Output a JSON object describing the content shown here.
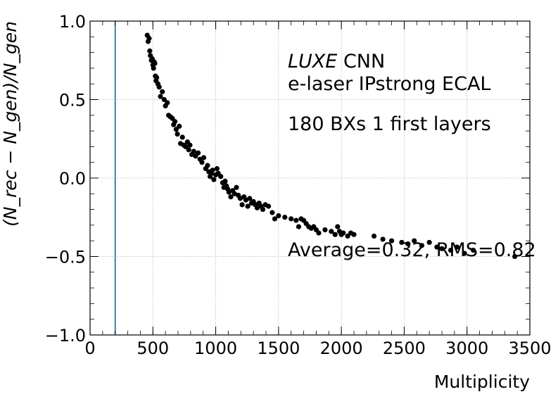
{
  "chart_data": {
    "type": "scatter",
    "xlabel": "Multiplicity",
    "ylabel": "(N_rec − N_gen)/N_gen",
    "xlim": [
      0,
      3500
    ],
    "ylim": [
      -1.0,
      1.0
    ],
    "grid": true,
    "x_ticks": [
      "0",
      "500",
      "1000",
      "1500",
      "2000",
      "2500",
      "3000",
      "3500"
    ],
    "y_ticks": [
      "−1.0",
      "−0.5",
      "0.0",
      "0.5",
      "1.0"
    ],
    "vertical_line_x": 200,
    "annotations": {
      "line1_italic": "LUXE",
      "line1_rest": " CNN",
      "line2": "e-laser IPstrong ECAL",
      "line3": "180 BXs 1 first layers",
      "stats": "Average=0.32, RMS=0.82"
    },
    "colors": {
      "points": "#000000",
      "vline": "#1f77b4",
      "grid": "#b0b0b0"
    },
    "points": [
      [
        455,
        0.91
      ],
      [
        462,
        0.87
      ],
      [
        470,
        0.89
      ],
      [
        475,
        0.81
      ],
      [
        480,
        0.78
      ],
      [
        488,
        0.75
      ],
      [
        495,
        0.76
      ],
      [
        500,
        0.72
      ],
      [
        505,
        0.7
      ],
      [
        510,
        0.74
      ],
      [
        515,
        0.73
      ],
      [
        520,
        0.65
      ],
      [
        525,
        0.62
      ],
      [
        530,
        0.64
      ],
      [
        540,
        0.6
      ],
      [
        550,
        0.58
      ],
      [
        560,
        0.52
      ],
      [
        575,
        0.55
      ],
      [
        590,
        0.5
      ],
      [
        600,
        0.46
      ],
      [
        615,
        0.48
      ],
      [
        625,
        0.4
      ],
      [
        640,
        0.39
      ],
      [
        655,
        0.38
      ],
      [
        665,
        0.34
      ],
      [
        675,
        0.36
      ],
      [
        685,
        0.31
      ],
      [
        695,
        0.28
      ],
      [
        710,
        0.33
      ],
      [
        720,
        0.22
      ],
      [
        735,
        0.26
      ],
      [
        745,
        0.21
      ],
      [
        760,
        0.2
      ],
      [
        775,
        0.23
      ],
      [
        785,
        0.18
      ],
      [
        795,
        0.21
      ],
      [
        810,
        0.15
      ],
      [
        825,
        0.17
      ],
      [
        840,
        0.14
      ],
      [
        860,
        0.16
      ],
      [
        875,
        0.12
      ],
      [
        890,
        0.1
      ],
      [
        905,
        0.13
      ],
      [
        920,
        0.06
      ],
      [
        935,
        0.08
      ],
      [
        945,
        0.04
      ],
      [
        955,
        0.01
      ],
      [
        965,
        0.03
      ],
      [
        975,
        0.05
      ],
      [
        985,
        -0.01
      ],
      [
        1000,
        0.02
      ],
      [
        1010,
        0.06
      ],
      [
        1020,
        0.03
      ],
      [
        1040,
        0.01
      ],
      [
        1055,
        -0.03
      ],
      [
        1065,
        -0.06
      ],
      [
        1075,
        -0.02
      ],
      [
        1085,
        -0.05
      ],
      [
        1095,
        -0.07
      ],
      [
        1105,
        -0.09
      ],
      [
        1120,
        -0.12
      ],
      [
        1135,
        -0.08
      ],
      [
        1150,
        -0.1
      ],
      [
        1165,
        -0.06
      ],
      [
        1180,
        -0.11
      ],
      [
        1195,
        -0.13
      ],
      [
        1210,
        -0.17
      ],
      [
        1225,
        -0.12
      ],
      [
        1240,
        -0.14
      ],
      [
        1255,
        -0.18
      ],
      [
        1270,
        -0.13
      ],
      [
        1285,
        -0.16
      ],
      [
        1300,
        -0.15
      ],
      [
        1315,
        -0.17
      ],
      [
        1330,
        -0.19
      ],
      [
        1345,
        -0.16
      ],
      [
        1360,
        -0.18
      ],
      [
        1375,
        -0.2
      ],
      [
        1395,
        -0.17
      ],
      [
        1420,
        -0.18
      ],
      [
        1450,
        -0.22
      ],
      [
        1470,
        -0.26
      ],
      [
        1500,
        -0.24
      ],
      [
        1550,
        -0.25
      ],
      [
        1600,
        -0.26
      ],
      [
        1640,
        -0.27
      ],
      [
        1660,
        -0.31
      ],
      [
        1680,
        -0.26
      ],
      [
        1700,
        -0.27
      ],
      [
        1720,
        -0.29
      ],
      [
        1740,
        -0.31
      ],
      [
        1760,
        -0.32
      ],
      [
        1780,
        -0.31
      ],
      [
        1800,
        -0.33
      ],
      [
        1820,
        -0.35
      ],
      [
        1870,
        -0.33
      ],
      [
        1920,
        -0.34
      ],
      [
        1950,
        -0.36
      ],
      [
        1970,
        -0.31
      ],
      [
        1985,
        -0.34
      ],
      [
        2000,
        -0.36
      ],
      [
        2015,
        -0.35
      ],
      [
        2050,
        -0.37
      ],
      [
        2075,
        -0.35
      ],
      [
        2100,
        -0.36
      ],
      [
        2260,
        -0.37
      ],
      [
        2330,
        -0.39
      ],
      [
        2400,
        -0.4
      ],
      [
        2480,
        -0.41
      ],
      [
        2530,
        -0.42
      ],
      [
        2580,
        -0.4
      ],
      [
        2640,
        -0.43
      ],
      [
        2700,
        -0.41
      ],
      [
        2760,
        -0.44
      ],
      [
        2800,
        -0.45
      ],
      [
        2870,
        -0.46
      ],
      [
        2920,
        -0.44
      ],
      [
        2980,
        -0.48
      ],
      [
        3050,
        -0.46
      ],
      [
        3380,
        -0.5
      ]
    ]
  }
}
